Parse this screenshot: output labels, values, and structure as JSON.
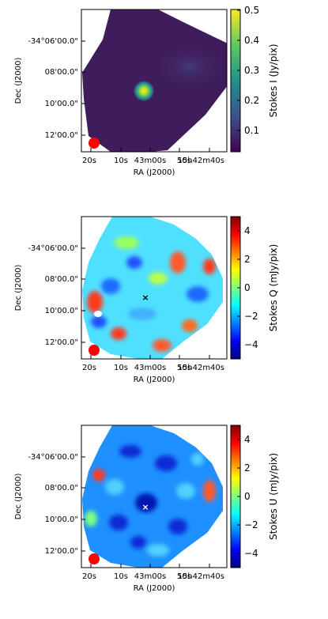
{
  "chart_data": [
    {
      "type": "heatmap",
      "title": "",
      "xlabel": "RA (J2000)",
      "ylabel": "Dec (J2000)",
      "x_tick_labels": [
        "20s",
        "10s",
        "43m00s",
        "50s",
        "15h42m40s"
      ],
      "y_tick_labels": [
        "-34°06'00.0\"",
        "08'00.0\"",
        "10'00.0\"",
        "12'00.0\""
      ],
      "colorbar": {
        "label": "Stokes I (Jy/pix)",
        "colormap": "viridis",
        "range": [
          0.02,
          0.5
        ],
        "ticks": [
          "0.1",
          "0.2",
          "0.3",
          "0.4",
          "0.5"
        ],
        "tick_values": [
          0.1,
          0.2,
          0.3,
          0.4,
          0.5
        ]
      },
      "features": {
        "source_peak": 0.5,
        "background_level": 0.04,
        "beam_color": "#ff0000",
        "map_background": "#3f1d5c"
      }
    },
    {
      "type": "heatmap",
      "title": "",
      "xlabel": "RA (J2000)",
      "ylabel": "Dec (J2000)",
      "x_tick_labels": [
        "20s",
        "10s",
        "43m00s",
        "50s",
        "15h42m40s"
      ],
      "y_tick_labels": [
        "-34°06'00.0\"",
        "08'00.0\"",
        "10'00.0\"",
        "12'00.0\""
      ],
      "colorbar": {
        "label": "Stokes Q (mJy/pix)",
        "colormap": "jet",
        "range": [
          -5,
          5
        ],
        "ticks": [
          "4",
          "2",
          "0",
          "−2",
          "−4"
        ],
        "tick_values": [
          4,
          2,
          0,
          -2,
          -4
        ]
      },
      "features": {
        "source_marker": "×",
        "marker_color": "#000000",
        "beam_color": "#ff0000"
      }
    },
    {
      "type": "heatmap",
      "title": "",
      "xlabel": "RA (J2000)",
      "ylabel": "Dec (J2000)",
      "x_tick_labels": [
        "20s",
        "10s",
        "43m00s",
        "50s",
        "15h42m40s"
      ],
      "y_tick_labels": [
        "-34°06'00.0\"",
        "08'00.0\"",
        "10'00.0\"",
        "12'00.0\""
      ],
      "colorbar": {
        "label": "Stokes U (mJy/pix)",
        "colormap": "jet",
        "range": [
          -5,
          5
        ],
        "ticks": [
          "4",
          "2",
          "0",
          "−2",
          "−4"
        ],
        "tick_values": [
          4,
          2,
          0,
          -2,
          -4
        ]
      },
      "features": {
        "source_marker": "×",
        "marker_color": "#ffffff",
        "beam_color": "#ff0000"
      }
    }
  ]
}
